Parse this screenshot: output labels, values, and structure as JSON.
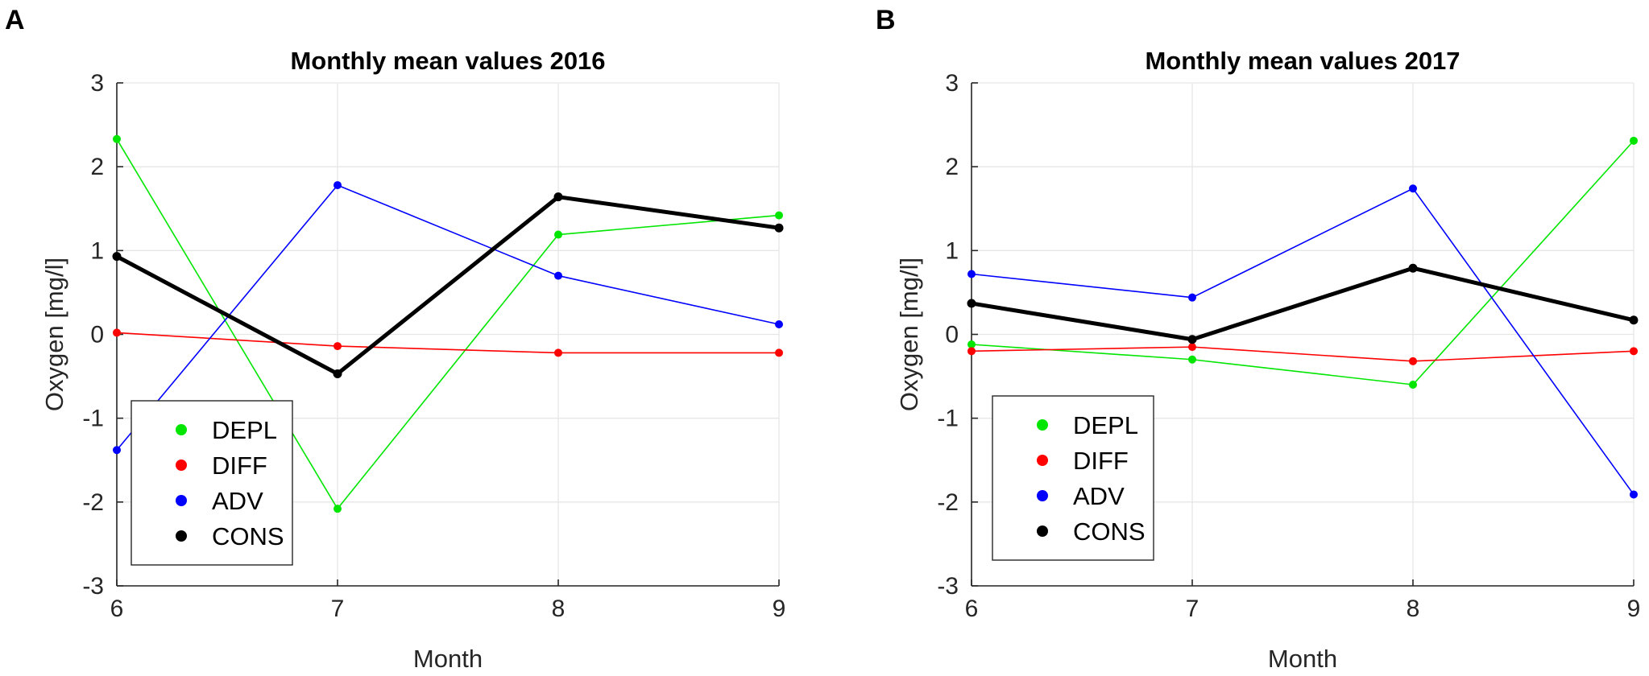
{
  "chart_data": [
    {
      "panel": "A",
      "type": "line",
      "title": "Monthly mean values 2016",
      "xlabel": "Month",
      "ylabel": "Oxygen [mg/l]",
      "x": [
        6,
        7,
        8,
        9
      ],
      "xlim": [
        6,
        9
      ],
      "ylim": [
        -3,
        3
      ],
      "xticks": [
        "6",
        "7",
        "8",
        "9"
      ],
      "yticks": [
        "3",
        "2",
        "1",
        "0",
        "-1",
        "-2",
        "-3"
      ],
      "grid": true,
      "legend_position": "lower-left",
      "series": [
        {
          "name": "DEPL",
          "color": "#00e600",
          "width": "thin",
          "values": [
            2.33,
            -2.08,
            1.19,
            1.42
          ]
        },
        {
          "name": "DIFF",
          "color": "#ff0000",
          "width": "thin",
          "values": [
            0.02,
            -0.14,
            -0.22,
            -0.22
          ]
        },
        {
          "name": "ADV",
          "color": "#0000ff",
          "width": "thin",
          "values": [
            -1.38,
            1.78,
            0.7,
            0.12
          ]
        },
        {
          "name": "CONS",
          "color": "#000000",
          "width": "thick",
          "values": [
            0.93,
            -0.47,
            1.64,
            1.27
          ]
        }
      ]
    },
    {
      "panel": "B",
      "type": "line",
      "title": "Monthly mean values 2017",
      "xlabel": "Month",
      "ylabel": "Oxygen [mg/l]",
      "x": [
        6,
        7,
        8,
        9
      ],
      "xlim": [
        6,
        9
      ],
      "ylim": [
        -3,
        3
      ],
      "xticks": [
        "6",
        "7",
        "8",
        "9"
      ],
      "yticks": [
        "3",
        "2",
        "1",
        "0",
        "-1",
        "-2",
        "-3"
      ],
      "grid": true,
      "legend_position": "lower-left",
      "series": [
        {
          "name": "DEPL",
          "color": "#00e600",
          "width": "thin",
          "values": [
            -0.12,
            -0.3,
            -0.6,
            2.31
          ]
        },
        {
          "name": "DIFF",
          "color": "#ff0000",
          "width": "thin",
          "values": [
            -0.2,
            -0.15,
            -0.32,
            -0.2
          ]
        },
        {
          "name": "ADV",
          "color": "#0000ff",
          "width": "thin",
          "values": [
            0.72,
            0.44,
            1.74,
            -1.91
          ]
        },
        {
          "name": "CONS",
          "color": "#000000",
          "width": "thick",
          "values": [
            0.37,
            -0.06,
            0.79,
            0.17
          ]
        }
      ]
    }
  ]
}
